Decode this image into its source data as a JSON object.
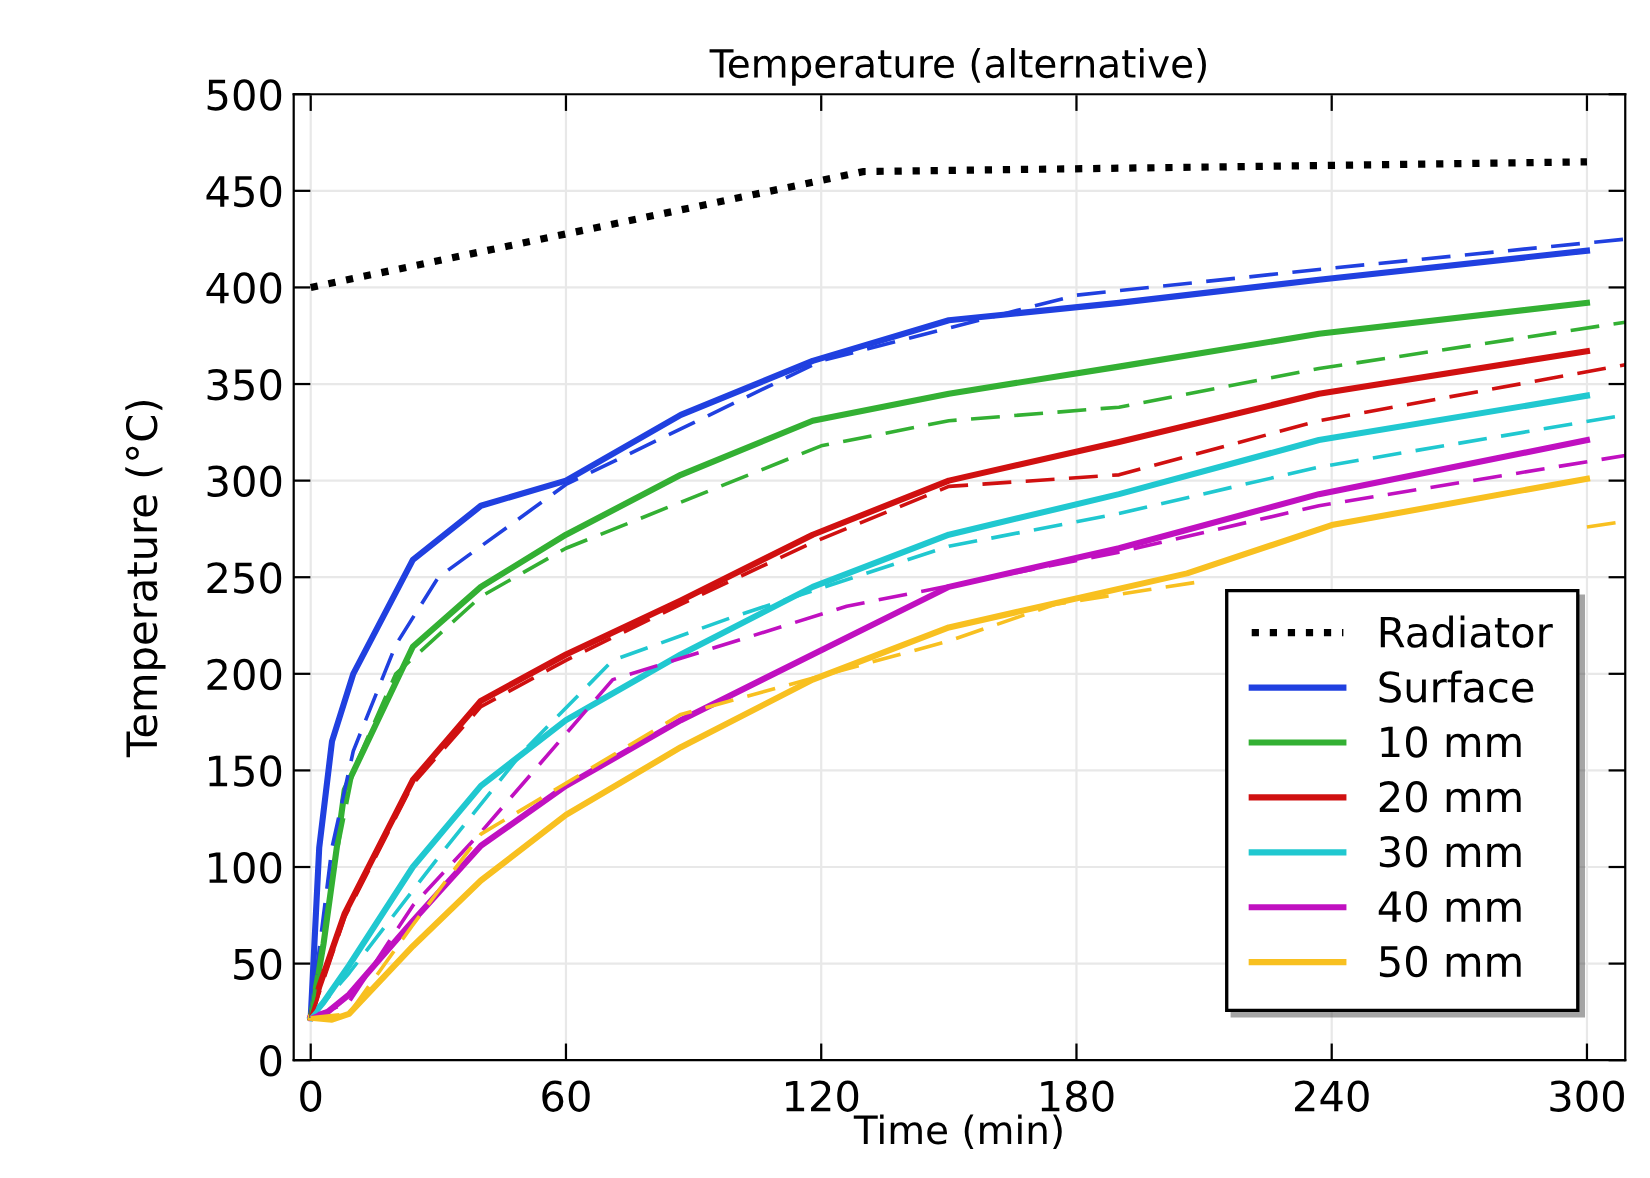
{
  "chart_data": {
    "type": "line",
    "title": "Temperature (alternative)",
    "xlabel": "Time (min)",
    "ylabel": "Temperature (°C)",
    "xlim": [
      -4,
      309
    ],
    "ylim": [
      0,
      500
    ],
    "xticks": [
      0,
      60,
      120,
      180,
      240,
      300
    ],
    "yticks": [
      0,
      50,
      100,
      150,
      200,
      250,
      300,
      350,
      400,
      450,
      500
    ],
    "grid": true,
    "legend": "bottom right",
    "marker": "none",
    "series": [
      {
        "name": "Radiator",
        "color": "#000000",
        "line_style": "dotted",
        "x": [
          0,
          130,
          200,
          300
        ],
        "values": [
          400,
          460,
          462,
          465
        ]
      },
      {
        "name": "Surface",
        "color": "#2040e0",
        "line_style": "solid",
        "x": [
          0,
          2,
          5,
          10,
          24,
          40,
          60,
          87,
          118,
          150,
          190,
          237,
          300
        ],
        "values": [
          22,
          110,
          165,
          200,
          259,
          287,
          300,
          334,
          362,
          383,
          392,
          404,
          419
        ]
      },
      {
        "name": "10 mm",
        "color": "#33b033",
        "line_style": "solid",
        "x": [
          0,
          3,
          8,
          24,
          40,
          60,
          87,
          118,
          150,
          190,
          237,
          300
        ],
        "values": [
          22,
          60,
          140,
          214,
          245,
          272,
          303,
          331,
          345,
          359,
          376,
          392
        ]
      },
      {
        "name": "20 mm",
        "color": "#d01010",
        "line_style": "solid",
        "x": [
          0,
          2,
          8,
          24,
          40,
          60,
          87,
          118,
          150,
          190,
          237,
          300
        ],
        "values": [
          22,
          38,
          76,
          145,
          186,
          210,
          238,
          272,
          300,
          320,
          345,
          367
        ]
      },
      {
        "name": "30 mm",
        "color": "#20c8d0",
        "line_style": "solid",
        "x": [
          0,
          3,
          9,
          24,
          40,
          60,
          87,
          118,
          150,
          190,
          237,
          300
        ],
        "values": [
          22,
          30,
          49,
          100,
          142,
          176,
          210,
          245,
          272,
          293,
          321,
          344
        ]
      },
      {
        "name": "40 mm",
        "color": "#c010c0",
        "line_style": "solid",
        "x": [
          0,
          4,
          9,
          24,
          40,
          60,
          87,
          118,
          150,
          190,
          237,
          300
        ],
        "values": [
          22,
          25,
          34,
          72,
          111,
          142,
          176,
          210,
          245,
          265,
          293,
          321
        ]
      },
      {
        "name": "50 mm",
        "color": "#f8c020",
        "line_style": "solid",
        "x": [
          0,
          5,
          9,
          24,
          40,
          60,
          87,
          118,
          150,
          206,
          240,
          300
        ],
        "values": [
          22,
          21,
          24,
          59,
          93,
          127,
          162,
          197,
          224,
          252,
          277,
          301
        ]
      },
      {
        "color": "#2040e0",
        "line_style": "dashed",
        "x": [
          0,
          5,
          10,
          20,
          30,
          60,
          120,
          180,
          240,
          309
        ],
        "values": [
          22,
          110,
          160,
          215,
          250,
          298,
          362,
          396,
          410,
          425
        ]
      },
      {
        "color": "#33b033",
        "line_style": "dashed",
        "x": [
          0,
          5,
          10,
          20,
          40,
          60,
          120,
          150,
          190,
          237,
          309
        ],
        "values": [
          22,
          95,
          150,
          200,
          240,
          265,
          318,
          331,
          338,
          358,
          382
        ]
      },
      {
        "color": "#d01010",
        "line_style": "dashed",
        "x": [
          0,
          8,
          24,
          40,
          60,
          87,
          118,
          150,
          190,
          237,
          309
        ],
        "values": [
          22,
          74,
          143,
          183,
          207,
          236,
          268,
          297,
          303,
          331,
          360
        ]
      },
      {
        "color": "#20c8d0",
        "line_style": "dashed",
        "x": [
          0,
          9,
          30,
          50,
          71,
          100,
          150,
          190,
          237,
          309
        ],
        "values": [
          22,
          45,
          105,
          160,
          207,
          230,
          266,
          283,
          307,
          334
        ]
      },
      {
        "color": "#c010c0",
        "line_style": "dashed",
        "x": [
          0,
          9,
          24,
          40,
          71,
          126,
          190,
          237,
          309
        ],
        "values": [
          22,
          30,
          80,
          118,
          197,
          235,
          263,
          287,
          313
        ]
      },
      {
        "color": "#f8c020",
        "line_style": "dashed",
        "x": [
          0,
          9,
          24,
          40,
          87,
          150,
          175,
          210,
          240,
          300,
          309
        ],
        "values": [
          22,
          24,
          70,
          117,
          179,
          217,
          236,
          248,
          null,
          276,
          279
        ]
      }
    ]
  }
}
